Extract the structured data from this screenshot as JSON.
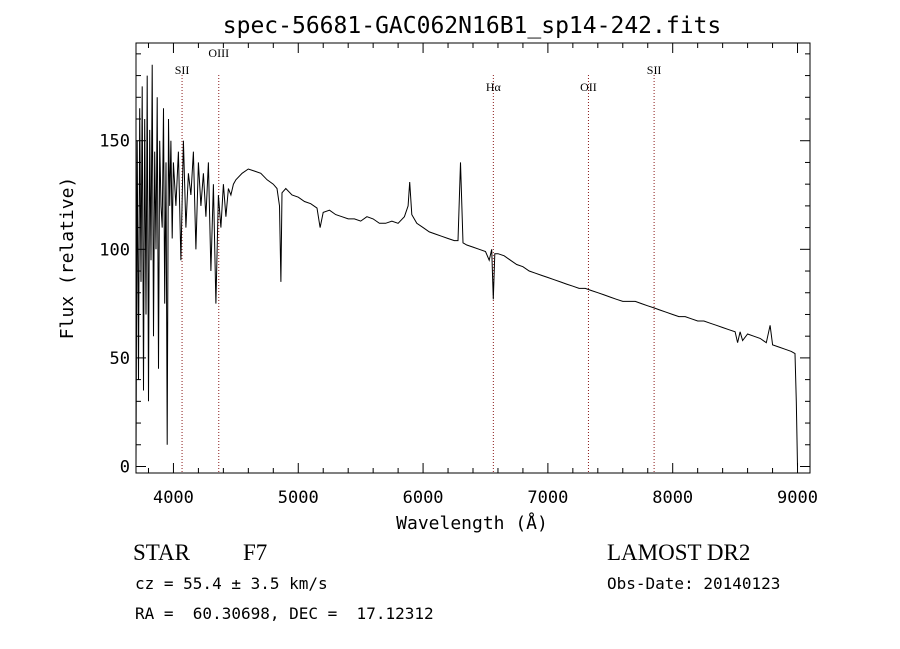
{
  "chart_data": {
    "type": "line",
    "title": "spec-56681-GAC062N16B1_sp14-242.fits",
    "xlabel": "Wavelength (Å)",
    "ylabel": "Flux (relative)",
    "xlim": [
      3700,
      9100
    ],
    "ylim": [
      -3,
      195
    ],
    "x_ticks": [
      4000,
      5000,
      6000,
      7000,
      8000,
      9000
    ],
    "y_ticks": [
      0,
      50,
      100,
      150
    ],
    "grid": false,
    "line_color": "#000000",
    "marker_color": "#8b1a1a",
    "line_markers": [
      {
        "label": "SII",
        "wavelength": 4069
      },
      {
        "label": "OIII",
        "wavelength": 4363
      },
      {
        "label": "Hα",
        "wavelength": 6563
      },
      {
        "label": "OII",
        "wavelength": 7325
      },
      {
        "label": "SII",
        "wavelength": 7851
      }
    ],
    "series": [
      {
        "x": [
          3700,
          3710,
          3720,
          3730,
          3740,
          3750,
          3760,
          3770,
          3780,
          3790,
          3800,
          3810,
          3820,
          3830,
          3840,
          3850,
          3860,
          3870,
          3880,
          3890,
          3900,
          3910,
          3920,
          3930,
          3940,
          3950,
          3960,
          3970,
          3980,
          3990,
          4000,
          4020,
          4040,
          4060,
          4080,
          4100,
          4120,
          4140,
          4160,
          4180,
          4200,
          4220,
          4240,
          4260,
          4280,
          4300,
          4320,
          4340,
          4360,
          4380,
          4400,
          4420,
          4440,
          4460,
          4480,
          4500,
          4550,
          4600,
          4650,
          4700,
          4750,
          4800,
          4830,
          4850,
          4861,
          4870,
          4900,
          4950,
          5000,
          5050,
          5100,
          5150,
          5175,
          5200,
          5250,
          5300,
          5350,
          5400,
          5450,
          5500,
          5550,
          5600,
          5650,
          5700,
          5750,
          5800,
          5850,
          5880,
          5893,
          5910,
          5950,
          6000,
          6050,
          6100,
          6150,
          6200,
          6250,
          6280,
          6300,
          6320,
          6350,
          6400,
          6450,
          6500,
          6530,
          6550,
          6563,
          6575,
          6600,
          6650,
          6700,
          6750,
          6800,
          6850,
          6900,
          6950,
          7000,
          7050,
          7100,
          7150,
          7200,
          7250,
          7300,
          7350,
          7400,
          7450,
          7500,
          7550,
          7600,
          7650,
          7700,
          7750,
          7800,
          7850,
          7900,
          7950,
          8000,
          8050,
          8100,
          8150,
          8200,
          8250,
          8300,
          8350,
          8400,
          8450,
          8500,
          8520,
          8540,
          8560,
          8600,
          8650,
          8700,
          8750,
          8780,
          8800,
          8850,
          8900,
          8950,
          8980,
          8990,
          9000
        ],
        "y": [
          0,
          150,
          40,
          165,
          85,
          175,
          35,
          160,
          70,
          180,
          30,
          155,
          95,
          185,
          60,
          145,
          100,
          170,
          45,
          150,
          120,
          110,
          165,
          75,
          140,
          10,
          160,
          120,
          150,
          105,
          140,
          120,
          145,
          95,
          150,
          110,
          135,
          125,
          145,
          100,
          140,
          120,
          135,
          115,
          140,
          90,
          130,
          75,
          125,
          110,
          130,
          115,
          128,
          125,
          130,
          132,
          135,
          137,
          136,
          135,
          132,
          130,
          128,
          120,
          85,
          126,
          128,
          125,
          124,
          122,
          121,
          119,
          110,
          117,
          118,
          116,
          115,
          114,
          114,
          113,
          115,
          114,
          112,
          112,
          113,
          112,
          115,
          120,
          131,
          116,
          112,
          110,
          108,
          107,
          106,
          105,
          104,
          104,
          140,
          103,
          102,
          101,
          100,
          99,
          95,
          100,
          77,
          98,
          98,
          97,
          95,
          93,
          92,
          90,
          89,
          88,
          87,
          86,
          85,
          84,
          83,
          82,
          82,
          81,
          80,
          79,
          78,
          77,
          76,
          76,
          76,
          75,
          74,
          73,
          72,
          71,
          70,
          69,
          69,
          68,
          67,
          67,
          66,
          65,
          64,
          63,
          62,
          57,
          62,
          58,
          61,
          60,
          59,
          57,
          65,
          56,
          55,
          54,
          53,
          52,
          30,
          0
        ]
      }
    ]
  },
  "info": {
    "object_class": "STAR",
    "subclass": "F7",
    "survey": "LAMOST DR2",
    "cz": "cz = 55.4 ± 3.5 km/s",
    "obs_date": "Obs-Date: 20140123",
    "coords": "RA =  60.30698, DEC =  17.12312"
  }
}
